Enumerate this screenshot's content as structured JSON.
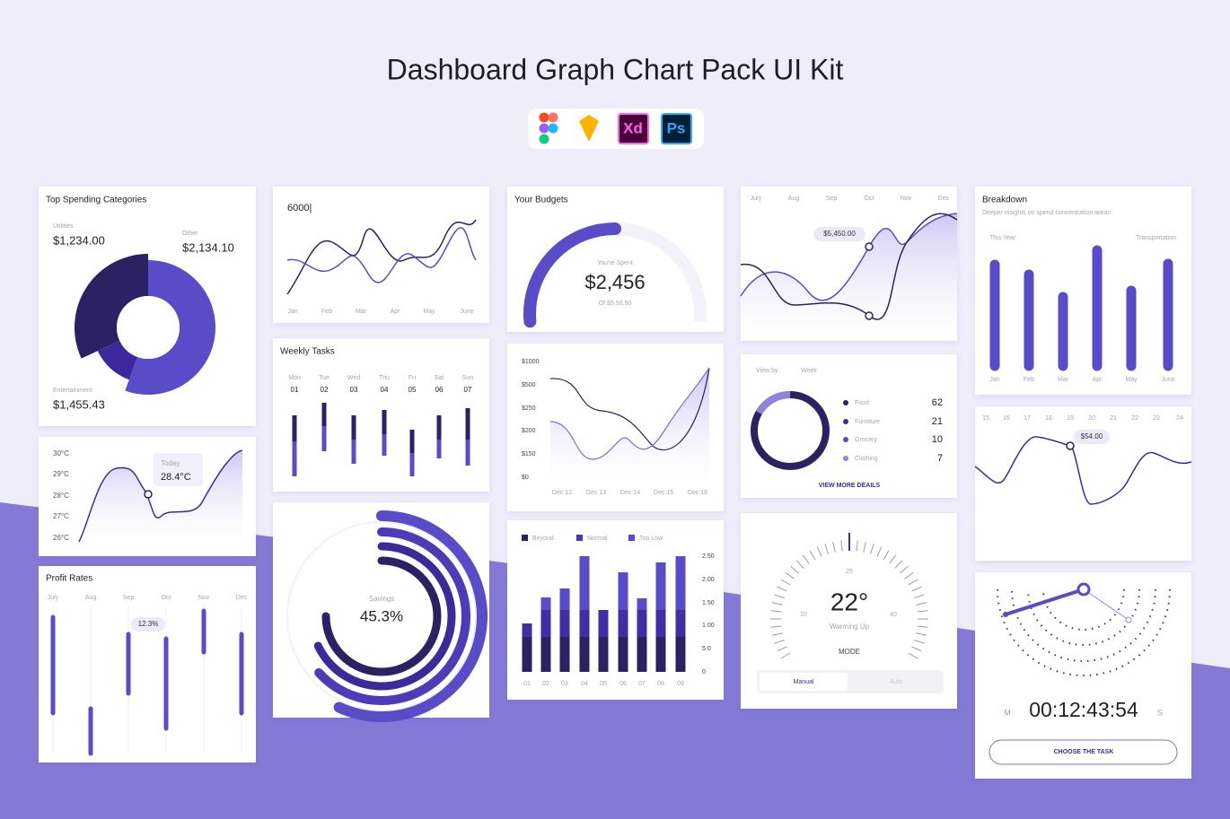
{
  "header": {
    "title": "Dashboard  Graph Chart Pack UI Kit",
    "tools": [
      "Xd",
      "Ps"
    ]
  },
  "spending": {
    "title": "Top Spending Categories",
    "utilities_label": "Utilities",
    "utilities": "$1,234.00",
    "other_label": "Other",
    "other": "$2,134.10",
    "entertainment_label": "Entertainment",
    "entertainment": "$1,455.43"
  },
  "temperature": {
    "ticks": [
      "30°C",
      "29°C",
      "28°C",
      "27°C",
      "26°C"
    ],
    "tooltip_label": "Today",
    "tooltip_value": "28.4°C"
  },
  "profit": {
    "title": "Profit Rates",
    "months": [
      "July",
      "Aug",
      "Sep",
      "Oct",
      "Nov",
      "Dec"
    ],
    "tooltip": "12.3%"
  },
  "line_chart": {
    "value": "6000|",
    "months": [
      "Jan",
      "Feb",
      "Mar",
      "Apr",
      "May",
      "June"
    ]
  },
  "weekly": {
    "title": "Weekly Tasks",
    "days": [
      "Mon",
      "Tue",
      "Wed",
      "Thu",
      "Fri",
      "Sat",
      "Sun"
    ],
    "dates": [
      "01",
      "02",
      "03",
      "04",
      "05",
      "06",
      "07"
    ]
  },
  "savings": {
    "label": "Savings",
    "value": "45.3%"
  },
  "budgets": {
    "title": "Your Budgets",
    "label": "You're Spent",
    "value": "$2,456",
    "total": "Of $5,50,50"
  },
  "amounts": {
    "ticks": [
      "$1000",
      "$500",
      "$250",
      "$200",
      "$150",
      "$0"
    ],
    "dates": [
      "Dec 12",
      "Dec 13",
      "Dec 14",
      "Dec 15",
      "Dec 16"
    ]
  },
  "stacked": {
    "legend": [
      "Beyond",
      "Normal",
      "Too Low"
    ],
    "ticks": [
      "2.50",
      "2.00",
      "1.50",
      "1.00",
      "5.0",
      "0"
    ],
    "labels": [
      "01",
      "02",
      "03",
      "04",
      "05",
      "06",
      "07",
      "08",
      "09"
    ]
  },
  "wave": {
    "months": [
      "July",
      "Aug",
      "Sep",
      "Oct",
      "Nov",
      "Dec"
    ],
    "tooltip": "$5,450.00"
  },
  "categories": {
    "view_by": "View by",
    "period": "Week",
    "items": [
      {
        "name": "Food",
        "value": "62"
      },
      {
        "name": "Furniture",
        "value": "21"
      },
      {
        "name": "Grocery",
        "value": "10"
      },
      {
        "name": "Clothing",
        "value": "7"
      }
    ],
    "link": "VIEW MORE DEAILS"
  },
  "gauge": {
    "value": "22°",
    "top": "25",
    "left": "10",
    "right": "40",
    "status": "Warming Up",
    "mode": "MODE",
    "options": [
      "Manual",
      "Auto"
    ]
  },
  "breakdown": {
    "title": "Breakdown",
    "subtitle": "Deeper insights on spend concentration areas",
    "period": "This Year",
    "category": "Transportation",
    "months": [
      "Jan",
      "Feb",
      "Mar",
      "Apr",
      "May",
      "June"
    ]
  },
  "days_chart": {
    "days": [
      "15",
      "16",
      "17",
      "18",
      "19",
      "20",
      "21",
      "22",
      "23",
      "24"
    ],
    "tooltip": "$54.00"
  },
  "timer": {
    "left": "M",
    "time": "00:12:43:54",
    "right": "S",
    "button": "CHOOSE THE TASK"
  }
}
